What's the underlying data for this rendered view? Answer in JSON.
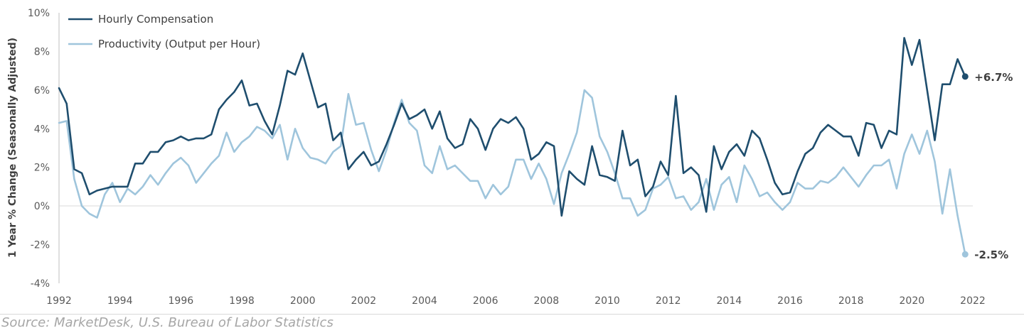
{
  "source": "Source: MarketDesk, U.S. Bureau of Labor Statistics",
  "chart_data": {
    "type": "line",
    "title": "",
    "xlabel": "",
    "ylabel": "1 Year % Change (Seasonally Adjusted)",
    "xlim": [
      1992,
      2022
    ],
    "ylim": [
      -4,
      10
    ],
    "x_ticks": [
      "1992",
      "1994",
      "1996",
      "1998",
      "2000",
      "2002",
      "2004",
      "2006",
      "2008",
      "2010",
      "2012",
      "2014",
      "2016",
      "2018",
      "2020",
      "2022"
    ],
    "y_ticks": [
      "-4%",
      "-2%",
      "0%",
      "2%",
      "4%",
      "6%",
      "8%",
      "10%"
    ],
    "grid": "zero-line only",
    "legend": "top-left",
    "series": [
      {
        "name": "Hourly Compensation",
        "color": "#1f4e6e",
        "end_label": "+6.7%",
        "x": [
          1992.0,
          1992.25,
          1992.5,
          1992.75,
          1993.0,
          1993.25,
          1993.5,
          1993.75,
          1994.0,
          1994.25,
          1994.5,
          1994.75,
          1995.0,
          1995.25,
          1995.5,
          1995.75,
          1996.0,
          1996.25,
          1996.5,
          1996.75,
          1997.0,
          1997.25,
          1997.5,
          1997.75,
          1998.0,
          1998.25,
          1998.5,
          1998.75,
          1999.0,
          1999.25,
          1999.5,
          1999.75,
          2000.0,
          2000.25,
          2000.5,
          2000.75,
          2001.0,
          2001.25,
          2001.5,
          2001.75,
          2002.0,
          2002.25,
          2002.5,
          2002.75,
          2003.0,
          2003.25,
          2003.5,
          2003.75,
          2004.0,
          2004.25,
          2004.5,
          2004.75,
          2005.0,
          2005.25,
          2005.5,
          2005.75,
          2006.0,
          2006.25,
          2006.5,
          2006.75,
          2007.0,
          2007.25,
          2007.5,
          2007.75,
          2008.0,
          2008.25,
          2008.5,
          2008.75,
          2009.0,
          2009.25,
          2009.5,
          2009.75,
          2010.0,
          2010.25,
          2010.5,
          2010.75,
          2011.0,
          2011.25,
          2011.5,
          2011.75,
          2012.0,
          2012.25,
          2012.5,
          2012.75,
          2013.0,
          2013.25,
          2013.5,
          2013.75,
          2014.0,
          2014.25,
          2014.5,
          2014.75,
          2015.0,
          2015.25,
          2015.5,
          2015.75,
          2016.0,
          2016.25,
          2016.5,
          2016.75,
          2017.0,
          2017.25,
          2017.5,
          2017.75,
          2018.0,
          2018.25,
          2018.5,
          2018.75,
          2019.0,
          2019.25,
          2019.5,
          2019.75,
          2020.0,
          2020.25,
          2020.5,
          2020.75,
          2021.0,
          2021.25,
          2021.5,
          2021.75
        ],
        "y": [
          6.1,
          5.3,
          1.9,
          1.7,
          0.6,
          0.8,
          0.9,
          1.0,
          1.0,
          1.0,
          2.2,
          2.2,
          2.8,
          2.8,
          3.3,
          3.4,
          3.6,
          3.4,
          3.5,
          3.5,
          3.7,
          5.0,
          5.5,
          5.9,
          6.5,
          5.2,
          5.3,
          4.4,
          3.7,
          5.2,
          7.0,
          6.8,
          7.9,
          6.5,
          5.1,
          5.3,
          3.4,
          3.8,
          1.9,
          2.4,
          2.8,
          2.1,
          2.3,
          3.2,
          4.2,
          5.3,
          4.5,
          4.7,
          5.0,
          4.0,
          4.9,
          3.5,
          3.0,
          3.2,
          4.5,
          4.0,
          2.9,
          4.0,
          4.5,
          4.3,
          4.6,
          4.0,
          2.4,
          2.7,
          3.3,
          3.1,
          -0.5,
          1.8,
          1.4,
          1.1,
          3.1,
          1.6,
          1.5,
          1.3,
          3.9,
          2.1,
          2.4,
          0.5,
          1.0,
          2.3,
          1.6,
          5.7,
          1.7,
          2.0,
          1.6,
          -0.3,
          3.1,
          1.9,
          2.8,
          3.2,
          2.6,
          3.9,
          3.5,
          2.4,
          1.2,
          0.6,
          0.7,
          1.8,
          2.7,
          3.0,
          3.8,
          4.2,
          3.9,
          3.6,
          3.6,
          2.6,
          4.3,
          4.2,
          3.0,
          3.9,
          3.7,
          8.7,
          7.3,
          8.6,
          6.0,
          3.4,
          6.3,
          6.3,
          7.6,
          6.7
        ]
      },
      {
        "name": "Productivity (Output per Hour)",
        "color": "#9fc5dc",
        "end_label": "-2.5%",
        "x": [
          1992.0,
          1992.25,
          1992.5,
          1992.75,
          1993.0,
          1993.25,
          1993.5,
          1993.75,
          1994.0,
          1994.25,
          1994.5,
          1994.75,
          1995.0,
          1995.25,
          1995.5,
          1995.75,
          1996.0,
          1996.25,
          1996.5,
          1996.75,
          1997.0,
          1997.25,
          1997.5,
          1997.75,
          1998.0,
          1998.25,
          1998.5,
          1998.75,
          1999.0,
          1999.25,
          1999.5,
          1999.75,
          2000.0,
          2000.25,
          2000.5,
          2000.75,
          2001.0,
          2001.25,
          2001.5,
          2001.75,
          2002.0,
          2002.25,
          2002.5,
          2002.75,
          2003.0,
          2003.25,
          2003.5,
          2003.75,
          2004.0,
          2004.25,
          2004.5,
          2004.75,
          2005.0,
          2005.25,
          2005.5,
          2005.75,
          2006.0,
          2006.25,
          2006.5,
          2006.75,
          2007.0,
          2007.25,
          2007.5,
          2007.75,
          2008.0,
          2008.25,
          2008.5,
          2008.75,
          2009.0,
          2009.25,
          2009.5,
          2009.75,
          2010.0,
          2010.25,
          2010.5,
          2010.75,
          2011.0,
          2011.25,
          2011.5,
          2011.75,
          2012.0,
          2012.25,
          2012.5,
          2012.75,
          2013.0,
          2013.25,
          2013.5,
          2013.75,
          2014.0,
          2014.25,
          2014.5,
          2014.75,
          2015.0,
          2015.25,
          2015.5,
          2015.75,
          2016.0,
          2016.25,
          2016.5,
          2016.75,
          2017.0,
          2017.25,
          2017.5,
          2017.75,
          2018.0,
          2018.25,
          2018.5,
          2018.75,
          2019.0,
          2019.25,
          2019.5,
          2019.75,
          2020.0,
          2020.25,
          2020.5,
          2020.75,
          2021.0,
          2021.25,
          2021.5,
          2021.75
        ],
        "y": [
          4.3,
          4.4,
          1.4,
          0.0,
          -0.4,
          -0.6,
          0.6,
          1.2,
          0.2,
          0.9,
          0.6,
          1.0,
          1.6,
          1.1,
          1.7,
          2.2,
          2.5,
          2.1,
          1.2,
          1.7,
          2.2,
          2.6,
          3.8,
          2.8,
          3.3,
          3.6,
          4.1,
          3.9,
          3.5,
          4.2,
          2.4,
          4.0,
          3.0,
          2.5,
          2.4,
          2.2,
          2.8,
          3.1,
          5.8,
          4.2,
          4.3,
          2.9,
          1.8,
          2.9,
          4.3,
          5.5,
          4.3,
          3.9,
          2.1,
          1.7,
          3.1,
          1.9,
          2.1,
          1.7,
          1.3,
          1.3,
          0.4,
          1.1,
          0.6,
          1.0,
          2.4,
          2.4,
          1.4,
          2.2,
          1.4,
          0.1,
          1.7,
          2.7,
          3.8,
          6.0,
          5.6,
          3.6,
          2.8,
          1.7,
          0.4,
          0.4,
          -0.5,
          -0.2,
          0.9,
          1.1,
          1.5,
          0.4,
          0.5,
          -0.2,
          0.2,
          1.4,
          -0.2,
          1.1,
          1.5,
          0.2,
          2.1,
          1.4,
          0.5,
          0.7,
          0.2,
          -0.2,
          0.2,
          1.2,
          0.9,
          0.9,
          1.3,
          1.2,
          1.5,
          2.0,
          1.5,
          1.0,
          1.6,
          2.1,
          2.1,
          2.4,
          0.9,
          2.7,
          3.7,
          2.7,
          3.9,
          2.3,
          -0.4,
          1.9,
          -0.5,
          -2.5
        ]
      }
    ]
  }
}
